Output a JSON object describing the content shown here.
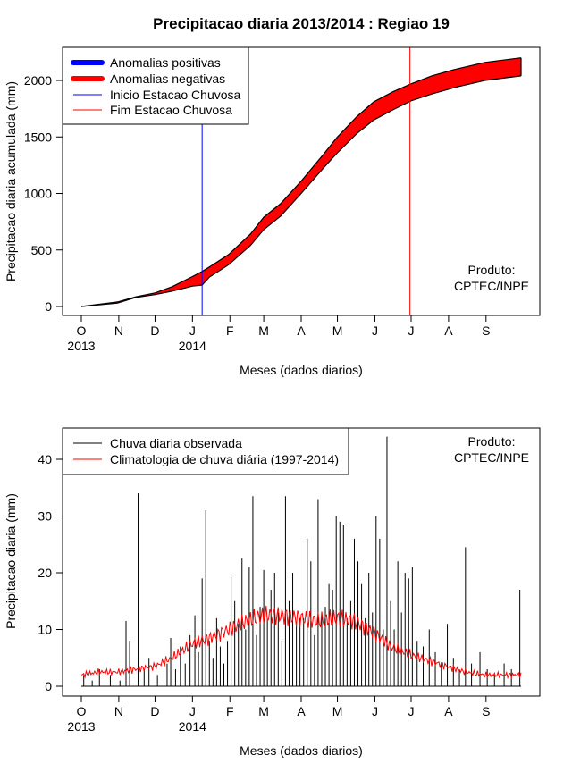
{
  "chart_data": [
    {
      "type": "area",
      "title": "Precipitacao diaria 2013/2014 : Regiao 19",
      "xlabel": "Meses (dados diarios)",
      "ylabel": "Precipitacao diaria acumulada (mm)",
      "ylim": [
        0,
        2200
      ],
      "yticks": [
        "0",
        "500",
        "1000",
        "1500",
        "2000"
      ],
      "months": [
        "O",
        "N",
        "D",
        "J",
        "F",
        "M",
        "A",
        "M",
        "J",
        "J",
        "A",
        "S"
      ],
      "years": [
        {
          "label": "2013",
          "month_index": 0
        },
        {
          "label": "2014",
          "month_index": 3
        }
      ],
      "legend": [
        "Anomalias positivas",
        "Anomalias negativas",
        "Inicio Estacao Chuvosa",
        "Fim Estacao Chuvosa"
      ],
      "legend_colors": [
        "#0000ff",
        "#ff0000",
        "#0000ff",
        "#ff0000"
      ],
      "credit": [
        "Produto:",
        "CPTEC/INPE"
      ],
      "rainy_season_start_day": 100,
      "rainy_season_end_day": 272,
      "observed_cumulative": {
        "day": [
          0,
          30,
          45,
          61,
          75,
          92,
          100,
          106,
          122,
          140,
          151,
          165,
          182,
          200,
          212,
          228,
          242,
          258,
          273,
          290,
          310,
          334,
          364
        ],
        "value": [
          0,
          30,
          80,
          105,
          135,
          180,
          190,
          260,
          370,
          540,
          680,
          800,
          1000,
          1220,
          1360,
          1530,
          1650,
          1740,
          1820,
          1880,
          1940,
          2000,
          2040
        ]
      },
      "climatology_cumulative": {
        "day": [
          0,
          30,
          45,
          61,
          75,
          92,
          100,
          106,
          122,
          140,
          151,
          165,
          182,
          200,
          212,
          228,
          242,
          258,
          273,
          290,
          310,
          334,
          364
        ],
        "value": [
          0,
          40,
          85,
          120,
          175,
          265,
          310,
          350,
          460,
          640,
          790,
          910,
          1110,
          1340,
          1500,
          1680,
          1810,
          1900,
          1970,
          2040,
          2100,
          2160,
          2200
        ]
      }
    },
    {
      "type": "bar",
      "xlabel": "Meses (dados diarios)",
      "ylabel": "Precipitacao diaria (mm)",
      "ylim": [
        0,
        45
      ],
      "yticks": [
        "0",
        "10",
        "20",
        "30",
        "40"
      ],
      "months": [
        "O",
        "N",
        "D",
        "J",
        "F",
        "M",
        "A",
        "M",
        "J",
        "J",
        "A",
        "S"
      ],
      "years": [
        {
          "label": "2013",
          "month_index": 0
        },
        {
          "label": "2014",
          "month_index": 3
        }
      ],
      "legend": [
        "Chuva diaria observada",
        "Climatologia de chuva diária (1997-2014)"
      ],
      "legend_colors": [
        "#000000",
        "#ff0000"
      ],
      "credit": [
        "Produto:",
        "CPTEC/INPE"
      ],
      "observed_daily": {
        "day": [
          2,
          9,
          15,
          24,
          32,
          37,
          40,
          47,
          52,
          56,
          63,
          71,
          74,
          78,
          82,
          86,
          90,
          94,
          97,
          100,
          103,
          106,
          109,
          112,
          115,
          118,
          121,
          124,
          127,
          130,
          133,
          136,
          139,
          142,
          145,
          148,
          151,
          154,
          157,
          160,
          163,
          166,
          169,
          172,
          175,
          178,
          181,
          184,
          187,
          190,
          193,
          196,
          199,
          202,
          205,
          208,
          211,
          214,
          217,
          220,
          223,
          226,
          229,
          232,
          235,
          238,
          241,
          244,
          247,
          250,
          253,
          256,
          259,
          262,
          265,
          268,
          271,
          274,
          278,
          283,
          288,
          293,
          298,
          303,
          308,
          313,
          318,
          323,
          330,
          336,
          342,
          350,
          356,
          363
        ],
        "value": [
          2,
          1,
          3,
          2,
          1,
          11.5,
          8,
          34,
          3,
          5,
          2,
          4,
          8.5,
          3,
          7,
          4,
          9,
          12.5,
          6,
          19,
          31,
          8,
          5,
          12,
          7,
          4,
          8,
          19.5,
          15,
          11,
          22.5,
          10,
          21,
          33.5,
          9,
          14,
          20.5,
          12,
          17,
          20,
          13,
          8,
          33.5,
          15,
          20,
          11,
          12,
          12,
          26,
          22,
          9,
          33,
          13,
          14,
          18,
          17,
          30,
          29,
          28.5,
          12,
          15,
          26,
          22,
          18,
          12,
          20,
          13,
          30,
          26,
          10,
          44,
          15,
          10,
          22,
          13,
          20,
          19,
          21,
          8,
          7,
          10,
          6,
          4,
          11,
          5,
          3,
          24.5,
          4,
          6,
          3,
          2,
          4,
          3,
          17
        ]
      },
      "climatology_daily": {
        "day": [
          0,
          15,
          30,
          45,
          61,
          75,
          92,
          106,
          122,
          137,
          151,
          165,
          182,
          196,
          212,
          226,
          242,
          256,
          273,
          288,
          303,
          318,
          334,
          349,
          364
        ],
        "value": [
          2,
          2.5,
          2.5,
          3,
          3.5,
          5,
          7.5,
          8.5,
          10,
          11.5,
          12.5,
          12.5,
          12,
          11.5,
          12,
          11.5,
          9.5,
          7,
          5.5,
          4.5,
          3.5,
          2.5,
          2,
          2,
          2
        ]
      }
    }
  ]
}
